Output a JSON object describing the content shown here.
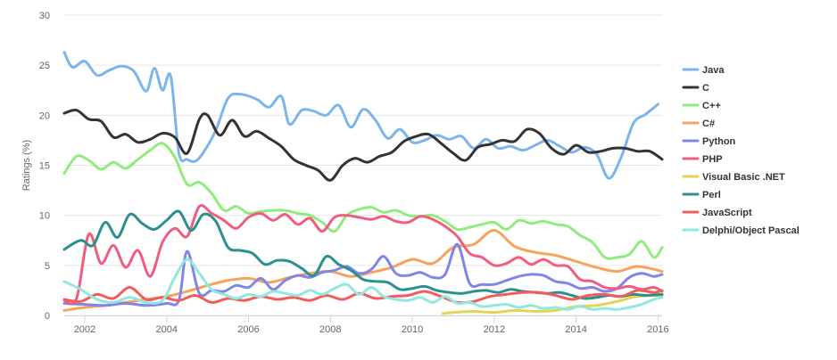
{
  "chart_data": {
    "type": "line",
    "title": "",
    "xlabel": "",
    "ylabel": "Ratings (%)",
    "xlim": [
      2001.5,
      2016.1
    ],
    "ylim": [
      0,
      30
    ],
    "y_ticks": [
      0,
      5,
      10,
      15,
      20,
      25,
      30
    ],
    "x_ticks": [
      2002,
      2004,
      2006,
      2008,
      2010,
      2012,
      2014,
      2016
    ],
    "grid": true,
    "legend_position": "right",
    "series": [
      {
        "name": "Java",
        "color": "#7cb5ec",
        "x": [
          2001.5,
          2001.7,
          2002.0,
          2002.3,
          2002.6,
          2002.9,
          2003.2,
          2003.5,
          2003.7,
          2003.9,
          2004.1,
          2004.3,
          2004.5,
          2004.7,
          2004.9,
          2005.2,
          2005.5,
          2005.8,
          2006.2,
          2006.5,
          2006.8,
          2007.0,
          2007.3,
          2007.6,
          2007.9,
          2008.2,
          2008.5,
          2008.8,
          2009.1,
          2009.4,
          2009.7,
          2010.0,
          2010.3,
          2010.6,
          2010.9,
          2011.2,
          2011.5,
          2011.8,
          2012.1,
          2012.4,
          2012.7,
          2013.0,
          2013.3,
          2013.6,
          2013.9,
          2014.2,
          2014.5,
          2014.8,
          2015.1,
          2015.4,
          2015.7,
          2016.0
        ],
        "y": [
          26.3,
          24.8,
          25.4,
          24.0,
          24.5,
          24.9,
          24.4,
          22.4,
          24.7,
          22.5,
          23.9,
          16.2,
          15.6,
          15.4,
          16.3,
          18.5,
          21.7,
          22.1,
          21.6,
          20.8,
          21.9,
          19.1,
          20.5,
          20.4,
          20.0,
          21.0,
          18.8,
          20.6,
          19.5,
          17.7,
          18.6,
          17.3,
          17.5,
          18.0,
          17.6,
          17.9,
          16.7,
          17.6,
          16.7,
          16.9,
          16.5,
          17.0,
          17.5,
          16.9,
          16.3,
          16.8,
          16.1,
          13.7,
          15.8,
          19.2,
          20.1,
          21.1
        ]
      },
      {
        "name": "C",
        "color": "#333333",
        "x": [
          2001.5,
          2001.8,
          2002.1,
          2002.4,
          2002.7,
          2003.0,
          2003.3,
          2003.6,
          2003.9,
          2004.2,
          2004.5,
          2004.8,
          2005.0,
          2005.3,
          2005.6,
          2005.9,
          2006.2,
          2006.5,
          2006.8,
          2007.1,
          2007.4,
          2007.7,
          2008.0,
          2008.3,
          2008.6,
          2008.9,
          2009.2,
          2009.5,
          2009.8,
          2010.1,
          2010.4,
          2010.7,
          2011.0,
          2011.3,
          2011.6,
          2011.9,
          2012.2,
          2012.5,
          2012.8,
          2013.1,
          2013.4,
          2013.7,
          2014.0,
          2014.3,
          2014.6,
          2014.9,
          2015.2,
          2015.5,
          2015.8,
          2016.1
        ],
        "y": [
          20.2,
          20.5,
          19.6,
          19.4,
          17.8,
          18.1,
          17.3,
          17.6,
          18.2,
          17.8,
          16.2,
          19.6,
          20.0,
          18.0,
          19.5,
          17.9,
          18.4,
          17.7,
          16.9,
          15.6,
          15.0,
          14.5,
          13.5,
          15.0,
          15.7,
          15.3,
          15.9,
          16.3,
          17.4,
          17.9,
          18.1,
          17.2,
          16.2,
          15.5,
          16.8,
          17.1,
          17.5,
          17.4,
          18.6,
          18.2,
          16.7,
          16.1,
          17.0,
          16.3,
          16.4,
          16.7,
          16.7,
          16.4,
          16.4,
          15.6
        ]
      },
      {
        "name": "C++",
        "color": "#90ed7d",
        "x": [
          2001.5,
          2001.8,
          2002.1,
          2002.4,
          2002.7,
          2003.0,
          2003.3,
          2003.6,
          2003.9,
          2004.2,
          2004.5,
          2004.8,
          2005.1,
          2005.4,
          2005.7,
          2006.0,
          2006.3,
          2006.6,
          2006.9,
          2007.2,
          2007.5,
          2007.8,
          2008.1,
          2008.4,
          2008.7,
          2009.0,
          2009.3,
          2009.6,
          2009.9,
          2010.2,
          2010.5,
          2010.8,
          2011.1,
          2011.4,
          2011.7,
          2012.0,
          2012.3,
          2012.6,
          2012.9,
          2013.2,
          2013.5,
          2013.8,
          2014.1,
          2014.4,
          2014.7,
          2015.0,
          2015.3,
          2015.6,
          2015.9,
          2016.1
        ],
        "y": [
          14.2,
          15.9,
          15.5,
          14.6,
          15.3,
          14.7,
          15.6,
          16.5,
          17.2,
          15.8,
          13.1,
          13.3,
          12.2,
          10.5,
          10.9,
          10.2,
          10.4,
          10.5,
          10.5,
          10.2,
          10.0,
          9.3,
          8.4,
          10.0,
          10.6,
          10.8,
          10.3,
          10.5,
          10.0,
          9.9,
          10.0,
          9.4,
          8.6,
          8.8,
          9.1,
          9.3,
          8.6,
          9.5,
          9.2,
          9.4,
          9.1,
          8.9,
          8.0,
          7.3,
          5.8,
          5.8,
          6.1,
          7.4,
          5.8,
          6.8
        ]
      },
      {
        "name": "C#",
        "color": "#f7a35c",
        "x": [
          2001.5,
          2002.0,
          2002.5,
          2003.0,
          2003.5,
          2004.0,
          2004.5,
          2005.0,
          2005.5,
          2006.0,
          2006.5,
          2007.0,
          2007.5,
          2008.0,
          2008.5,
          2009.0,
          2009.5,
          2010.0,
          2010.5,
          2011.0,
          2011.5,
          2012.0,
          2012.5,
          2013.0,
          2013.5,
          2014.0,
          2014.5,
          2015.0,
          2015.5,
          2016.1
        ],
        "y": [
          0.5,
          0.8,
          1.0,
          1.3,
          1.6,
          1.9,
          2.4,
          3.0,
          3.5,
          3.7,
          3.3,
          3.8,
          4.2,
          4.4,
          3.9,
          4.3,
          4.8,
          5.6,
          5.2,
          6.8,
          7.1,
          8.5,
          6.9,
          6.3,
          6.0,
          5.4,
          4.8,
          4.4,
          4.9,
          4.4
        ]
      },
      {
        "name": "Python",
        "color": "#8085e9",
        "x": [
          2001.5,
          2002.0,
          2002.5,
          2003.0,
          2003.5,
          2004.0,
          2004.3,
          2004.5,
          2004.8,
          2005.1,
          2005.4,
          2005.7,
          2006.0,
          2006.3,
          2006.6,
          2006.9,
          2007.2,
          2007.5,
          2007.8,
          2008.1,
          2008.4,
          2008.7,
          2009.0,
          2009.3,
          2009.6,
          2009.9,
          2010.2,
          2010.5,
          2010.8,
          2011.1,
          2011.4,
          2011.7,
          2012.0,
          2012.3,
          2012.6,
          2012.9,
          2013.2,
          2013.5,
          2013.8,
          2014.1,
          2014.4,
          2014.7,
          2015.0,
          2015.3,
          2015.6,
          2015.9,
          2016.1
        ],
        "y": [
          1.2,
          1.1,
          1.0,
          1.2,
          1.0,
          1.2,
          1.5,
          6.4,
          2.2,
          2.5,
          2.4,
          3.0,
          2.8,
          3.7,
          2.6,
          3.5,
          4.0,
          3.8,
          4.3,
          4.5,
          4.9,
          4.2,
          4.6,
          5.9,
          4.2,
          4.0,
          4.3,
          3.8,
          4.1,
          7.1,
          3.2,
          3.1,
          3.1,
          3.5,
          3.9,
          4.1,
          4.0,
          3.4,
          3.2,
          2.7,
          2.8,
          2.4,
          2.7,
          3.8,
          4.2,
          3.9,
          4.1
        ]
      },
      {
        "name": "PHP",
        "color": "#f15c80",
        "x": [
          2001.5,
          2001.8,
          2002.1,
          2002.4,
          2002.7,
          2003.0,
          2003.3,
          2003.6,
          2003.9,
          2004.2,
          2004.5,
          2004.8,
          2005.1,
          2005.4,
          2005.7,
          2006.0,
          2006.3,
          2006.6,
          2006.9,
          2007.2,
          2007.5,
          2007.8,
          2008.1,
          2008.4,
          2008.7,
          2009.0,
          2009.3,
          2009.6,
          2009.9,
          2010.2,
          2010.5,
          2010.8,
          2011.1,
          2011.4,
          2011.7,
          2012.0,
          2012.3,
          2012.6,
          2012.9,
          2013.2,
          2013.5,
          2013.8,
          2014.1,
          2014.4,
          2014.7,
          2015.0,
          2015.3,
          2015.6,
          2015.9,
          2016.1
        ],
        "y": [
          1.5,
          1.7,
          8.1,
          5.2,
          7.0,
          4.8,
          6.5,
          3.9,
          7.3,
          8.7,
          7.9,
          10.9,
          10.2,
          9.5,
          8.7,
          9.8,
          10.2,
          9.5,
          10.1,
          9.1,
          9.7,
          8.4,
          9.8,
          10.0,
          9.8,
          9.6,
          9.9,
          9.4,
          9.3,
          9.9,
          9.6,
          8.9,
          7.9,
          6.2,
          5.8,
          5.0,
          5.2,
          5.8,
          5.1,
          5.6,
          5.0,
          4.9,
          3.6,
          3.4,
          2.8,
          2.7,
          2.9,
          2.6,
          2.8,
          2.4
        ]
      },
      {
        "name": "Visual Basic .NET",
        "color": "#e4d354",
        "x": [
          2010.75,
          2011.0,
          2011.5,
          2012.0,
          2012.5,
          2013.0,
          2013.5,
          2014.0,
          2014.5,
          2015.0,
          2015.5,
          2016.1
        ],
        "y": [
          0.2,
          0.3,
          0.4,
          0.3,
          0.5,
          0.4,
          0.5,
          0.9,
          1.0,
          1.4,
          1.9,
          2.0
        ]
      },
      {
        "name": "Perl",
        "color": "#2b908f",
        "x": [
          2001.5,
          2001.9,
          2002.2,
          2002.5,
          2002.8,
          2003.1,
          2003.4,
          2003.7,
          2004.0,
          2004.3,
          2004.6,
          2004.9,
          2005.2,
          2005.5,
          2005.8,
          2006.1,
          2006.4,
          2006.7,
          2007.0,
          2007.3,
          2007.6,
          2007.9,
          2008.2,
          2008.5,
          2008.8,
          2009.1,
          2009.4,
          2009.7,
          2010.0,
          2010.3,
          2010.6,
          2010.9,
          2011.2,
          2011.5,
          2011.8,
          2012.1,
          2012.4,
          2012.7,
          2013.0,
          2013.3,
          2013.6,
          2013.9,
          2014.2,
          2014.5,
          2014.8,
          2015.1,
          2015.4,
          2015.7,
          2016.1
        ],
        "y": [
          6.6,
          7.5,
          7.0,
          9.3,
          7.8,
          10.1,
          9.2,
          8.6,
          9.5,
          10.4,
          8.5,
          10.1,
          9.4,
          6.8,
          6.5,
          6.2,
          5.1,
          5.5,
          5.4,
          4.7,
          4.0,
          5.9,
          5.1,
          4.5,
          3.6,
          3.4,
          3.3,
          2.6,
          2.7,
          2.9,
          2.5,
          2.3,
          2.2,
          2.4,
          2.5,
          2.3,
          2.6,
          2.4,
          2.3,
          2.2,
          2.3,
          2.0,
          1.7,
          1.8,
          2.0,
          1.9,
          2.1,
          2.0,
          2.1
        ]
      },
      {
        "name": "JavaScript",
        "color": "#f45b5b",
        "x": [
          2001.5,
          2001.9,
          2002.3,
          2002.7,
          2003.1,
          2003.5,
          2003.9,
          2004.3,
          2004.7,
          2005.1,
          2005.5,
          2005.9,
          2006.3,
          2006.7,
          2007.1,
          2007.5,
          2007.9,
          2008.3,
          2008.7,
          2009.1,
          2009.5,
          2009.9,
          2010.3,
          2010.7,
          2011.1,
          2011.5,
          2011.9,
          2012.3,
          2012.7,
          2013.1,
          2013.5,
          2013.9,
          2014.3,
          2014.7,
          2015.1,
          2015.5,
          2015.9,
          2016.1
        ],
        "y": [
          1.6,
          1.4,
          2.1,
          1.7,
          2.8,
          1.6,
          1.8,
          1.5,
          2.0,
          1.3,
          1.7,
          1.5,
          1.9,
          1.6,
          1.8,
          1.5,
          2.0,
          1.6,
          2.2,
          1.7,
          1.9,
          2.0,
          2.4,
          1.9,
          1.3,
          1.4,
          1.9,
          2.1,
          2.3,
          2.3,
          2.0,
          1.6,
          2.0,
          2.1,
          1.9,
          2.5,
          2.3,
          2.5
        ]
      },
      {
        "name": "Delphi/Object Pascal",
        "color": "#91e8e1",
        "x": [
          2001.5,
          2001.9,
          2002.3,
          2002.7,
          2003.1,
          2003.5,
          2003.9,
          2004.2,
          2004.5,
          2004.8,
          2005.1,
          2005.4,
          2005.7,
          2006.0,
          2006.3,
          2006.6,
          2006.9,
          2007.2,
          2007.5,
          2007.8,
          2008.1,
          2008.4,
          2008.7,
          2009.0,
          2009.3,
          2009.6,
          2009.9,
          2010.2,
          2010.5,
          2010.8,
          2011.1,
          2011.4,
          2011.7,
          2012.0,
          2012.3,
          2012.6,
          2012.9,
          2013.2,
          2013.5,
          2013.8,
          2014.1,
          2014.4,
          2014.7,
          2015.0,
          2015.3,
          2015.6,
          2015.9,
          2016.1
        ],
        "y": [
          3.4,
          2.6,
          1.6,
          1.3,
          1.8,
          1.3,
          1.5,
          3.8,
          5.6,
          4.2,
          2.6,
          2.1,
          1.7,
          2.1,
          1.9,
          2.4,
          2.2,
          2.0,
          2.5,
          2.1,
          2.7,
          3.1,
          2.1,
          2.8,
          1.9,
          1.6,
          1.5,
          1.8,
          1.3,
          1.9,
          1.2,
          1.3,
          0.9,
          1.0,
          1.1,
          0.8,
          1.0,
          0.7,
          0.8,
          0.6,
          0.9,
          0.6,
          0.7,
          0.6,
          0.8,
          1.1,
          1.6,
          1.8
        ]
      }
    ]
  }
}
